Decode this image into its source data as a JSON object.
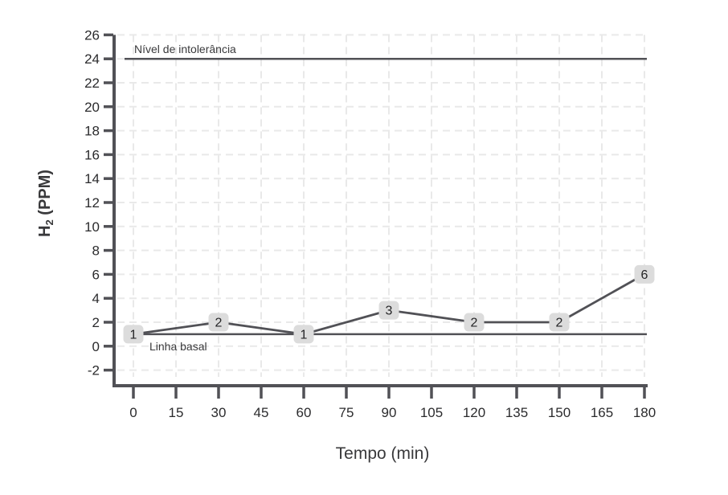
{
  "chart_data": {
    "type": "line",
    "title": "",
    "xlabel": "Tempo (min)",
    "ylabel": {
      "base": "H",
      "sub": "2",
      "rest": " (PPM)"
    },
    "x": [
      0,
      30,
      60,
      90,
      120,
      150,
      180
    ],
    "y": [
      1,
      2,
      1,
      3,
      2,
      2,
      6
    ],
    "point_labels": [
      "1",
      "2",
      "1",
      "3",
      "2",
      "2",
      "6"
    ],
    "x_ticks": [
      0,
      15,
      30,
      45,
      60,
      75,
      90,
      105,
      120,
      135,
      150,
      165,
      180
    ],
    "y_ticks": [
      -2,
      0,
      2,
      4,
      6,
      8,
      10,
      12,
      14,
      16,
      18,
      20,
      22,
      24,
      26
    ],
    "xlim": [
      0,
      180
    ],
    "ylim": [
      -3.4,
      26
    ],
    "grid": "dashed-both",
    "legend": "none",
    "annotations": [
      {
        "label": "Nível de intolerância",
        "y": 24
      },
      {
        "label": "Linha basal",
        "y": 1
      }
    ],
    "colors": {
      "line": "#515156",
      "axis": "#515156",
      "grid": "#e9e9e9",
      "tick_label": "#2b2b2d",
      "label_box_bg": "#dcdcdc",
      "label_text": "#242426",
      "axis_title": "#39393b",
      "annotation_text": "#3a3a3c",
      "background": "#ffffff"
    }
  }
}
